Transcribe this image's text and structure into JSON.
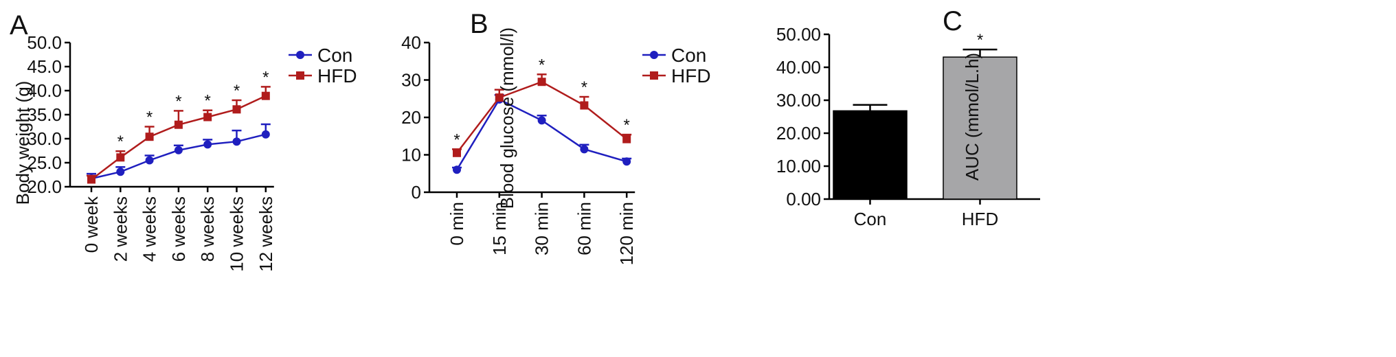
{
  "panels": [
    "A",
    "B",
    "C"
  ],
  "colors": {
    "Con": "#1f1fbf",
    "HFD": "#b01c1c",
    "bar_con": "#000000",
    "bar_hfd": "#a6a6a8"
  },
  "chart_data": [
    {
      "type": "line",
      "panel": "A",
      "ylabel": "Body weight (g)",
      "xlabel": "",
      "categories": [
        "0 week",
        "2 weeks",
        "4 weeks",
        "6 weeks",
        "8 weeks",
        "10 weeks",
        "12 weeks"
      ],
      "yticks": [
        "20.0",
        "25.0",
        "30.0",
        "35.0",
        "40.0",
        "45.0",
        "50.0"
      ],
      "ylim": [
        20,
        50
      ],
      "legend": "top-right",
      "series": [
        {
          "name": "Con",
          "marker": "circle",
          "values": [
            21.7,
            23.1,
            25.5,
            27.6,
            28.8,
            29.4,
            30.9
          ],
          "errors": [
            1.0,
            1.0,
            1.0,
            1.0,
            1.0,
            2.3,
            2.1
          ]
        },
        {
          "name": "HFD",
          "marker": "square",
          "values": [
            21.5,
            26.1,
            30.4,
            32.9,
            34.5,
            36.1,
            38.9
          ],
          "errors": [
            0.8,
            1.3,
            2.1,
            2.9,
            1.4,
            1.9,
            1.9
          ]
        }
      ],
      "significance": [
        "",
        "*",
        "*",
        "*",
        "*",
        "*",
        "*"
      ]
    },
    {
      "type": "line",
      "panel": "B",
      "ylabel": "Blood glucose (mmol/l)",
      "xlabel": "",
      "categories": [
        "0 min",
        "15 min",
        "30 min",
        "60 min",
        "120 min"
      ],
      "yticks": [
        "0",
        "10",
        "20",
        "30",
        "40"
      ],
      "ylim": [
        0,
        40
      ],
      "legend": "top-right",
      "series": [
        {
          "name": "Con",
          "marker": "circle",
          "values": [
            6.0,
            24.8,
            19.2,
            11.5,
            8.2
          ],
          "errors": [
            0.6,
            1.2,
            1.3,
            1.2,
            0.8
          ]
        },
        {
          "name": "HFD",
          "marker": "square",
          "values": [
            10.5,
            25.3,
            29.5,
            23.2,
            14.2
          ],
          "errors": [
            1.0,
            2.1,
            2.0,
            2.3,
            1.2
          ]
        }
      ],
      "significance": [
        "*",
        "",
        "*",
        "*",
        "*"
      ]
    },
    {
      "type": "bar",
      "panel": "C",
      "ylabel": "AUC (mmol/L.h)",
      "xlabel": "",
      "categories": [
        "Con",
        "HFD"
      ],
      "yticks": [
        "0.00",
        "10.00",
        "20.00",
        "30.00",
        "40.00",
        "50.00"
      ],
      "ylim": [
        0,
        50
      ],
      "values": [
        26.8,
        43.1
      ],
      "errors": [
        1.8,
        2.3
      ],
      "significance": [
        "",
        "*"
      ]
    }
  ]
}
